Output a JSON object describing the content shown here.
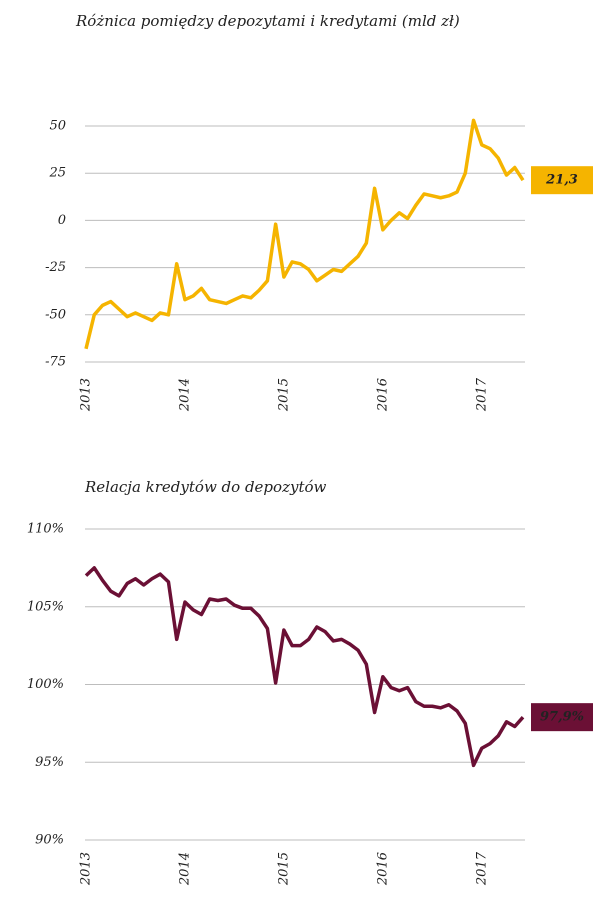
{
  "chart_data": [
    {
      "type": "line",
      "title": "Różnica pomiędzy depozytami i kredytami (mld zł)",
      "categories": [
        "2013",
        null,
        null,
        null,
        null,
        null,
        null,
        null,
        null,
        null,
        null,
        null,
        "2014",
        null,
        null,
        null,
        null,
        null,
        null,
        null,
        null,
        null,
        null,
        null,
        "2015",
        null,
        null,
        null,
        null,
        null,
        null,
        null,
        null,
        null,
        null,
        null,
        "2016",
        null,
        null,
        null,
        null,
        null,
        null,
        null,
        null,
        null,
        null,
        null,
        "2017",
        null,
        null,
        null,
        null,
        null
      ],
      "series": [
        {
          "name": null,
          "color": "#f5b400",
          "values": [
            -68,
            -50,
            -45,
            -43,
            -47,
            -51,
            -49,
            -51,
            -53,
            -49,
            -50,
            -23,
            -42,
            -40,
            -36,
            -42,
            -43,
            -44,
            -42,
            -40,
            -41,
            -37,
            -32,
            -2,
            -30,
            -22,
            -23,
            -26,
            -32,
            -29,
            -26,
            -27,
            -23,
            -19,
            -12,
            17,
            -5,
            0,
            4,
            1,
            8,
            14,
            13,
            12,
            13,
            15,
            25,
            53,
            40,
            38,
            33,
            24,
            28,
            21.3
          ],
          "value_labels": [
            null,
            null,
            null,
            null,
            null,
            null,
            null,
            null,
            null,
            null,
            null,
            null,
            null,
            null,
            null,
            null,
            null,
            null,
            null,
            null,
            null,
            null,
            null,
            null,
            null,
            null,
            null,
            null,
            null,
            null,
            null,
            null,
            null,
            null,
            null,
            null,
            null,
            null,
            null,
            null,
            null,
            null,
            null,
            null,
            null,
            null,
            null,
            null,
            null,
            null,
            null,
            null,
            null,
            "21,3"
          ]
        }
      ],
      "ylim": [
        -75,
        50
      ],
      "yticks": [
        -75,
        -50,
        -25,
        0,
        25,
        50
      ],
      "grid": true
    },
    {
      "type": "line",
      "title": "Relacja kredytów do depozytów",
      "categories": [
        "2013",
        null,
        null,
        null,
        null,
        null,
        null,
        null,
        null,
        null,
        null,
        null,
        "2014",
        null,
        null,
        null,
        null,
        null,
        null,
        null,
        null,
        null,
        null,
        null,
        "2015",
        null,
        null,
        null,
        null,
        null,
        null,
        null,
        null,
        null,
        null,
        null,
        "2016",
        null,
        null,
        null,
        null,
        null,
        null,
        null,
        null,
        null,
        null,
        null,
        "2017",
        null,
        null,
        null,
        null,
        null
      ],
      "series": [
        {
          "name": null,
          "color": "#6b1035",
          "values": [
            107.0,
            107.5,
            106.7,
            106.0,
            105.7,
            106.5,
            106.8,
            106.4,
            106.8,
            107.1,
            106.6,
            102.9,
            105.3,
            104.8,
            104.5,
            105.5,
            105.4,
            105.5,
            105.1,
            104.9,
            104.9,
            104.4,
            103.6,
            100.1,
            103.5,
            102.5,
            102.5,
            102.9,
            103.7,
            103.4,
            102.8,
            102.9,
            102.6,
            102.2,
            101.3,
            98.2,
            100.5,
            99.8,
            99.6,
            99.8,
            98.9,
            98.6,
            98.6,
            98.5,
            98.7,
            98.3,
            97.5,
            94.8,
            95.9,
            96.2,
            96.7,
            97.6,
            97.3,
            97.9
          ],
          "value_labels": [
            null,
            null,
            null,
            null,
            null,
            null,
            null,
            null,
            null,
            null,
            null,
            null,
            null,
            null,
            null,
            null,
            null,
            null,
            null,
            null,
            null,
            null,
            null,
            null,
            null,
            null,
            null,
            null,
            null,
            null,
            null,
            null,
            null,
            null,
            null,
            null,
            null,
            null,
            null,
            null,
            null,
            null,
            null,
            null,
            null,
            null,
            null,
            null,
            null,
            null,
            null,
            null,
            null,
            "97,9%"
          ]
        }
      ],
      "ylim": [
        90,
        110
      ],
      "yticks": [
        {
          "value": 90,
          "label": "90%"
        },
        {
          "value": 95,
          "label": "95%"
        },
        {
          "value": 100,
          "label": "100%"
        },
        {
          "value": 105,
          "label": "105%"
        },
        {
          "value": 110,
          "label": "110%"
        }
      ],
      "grid": true
    }
  ]
}
